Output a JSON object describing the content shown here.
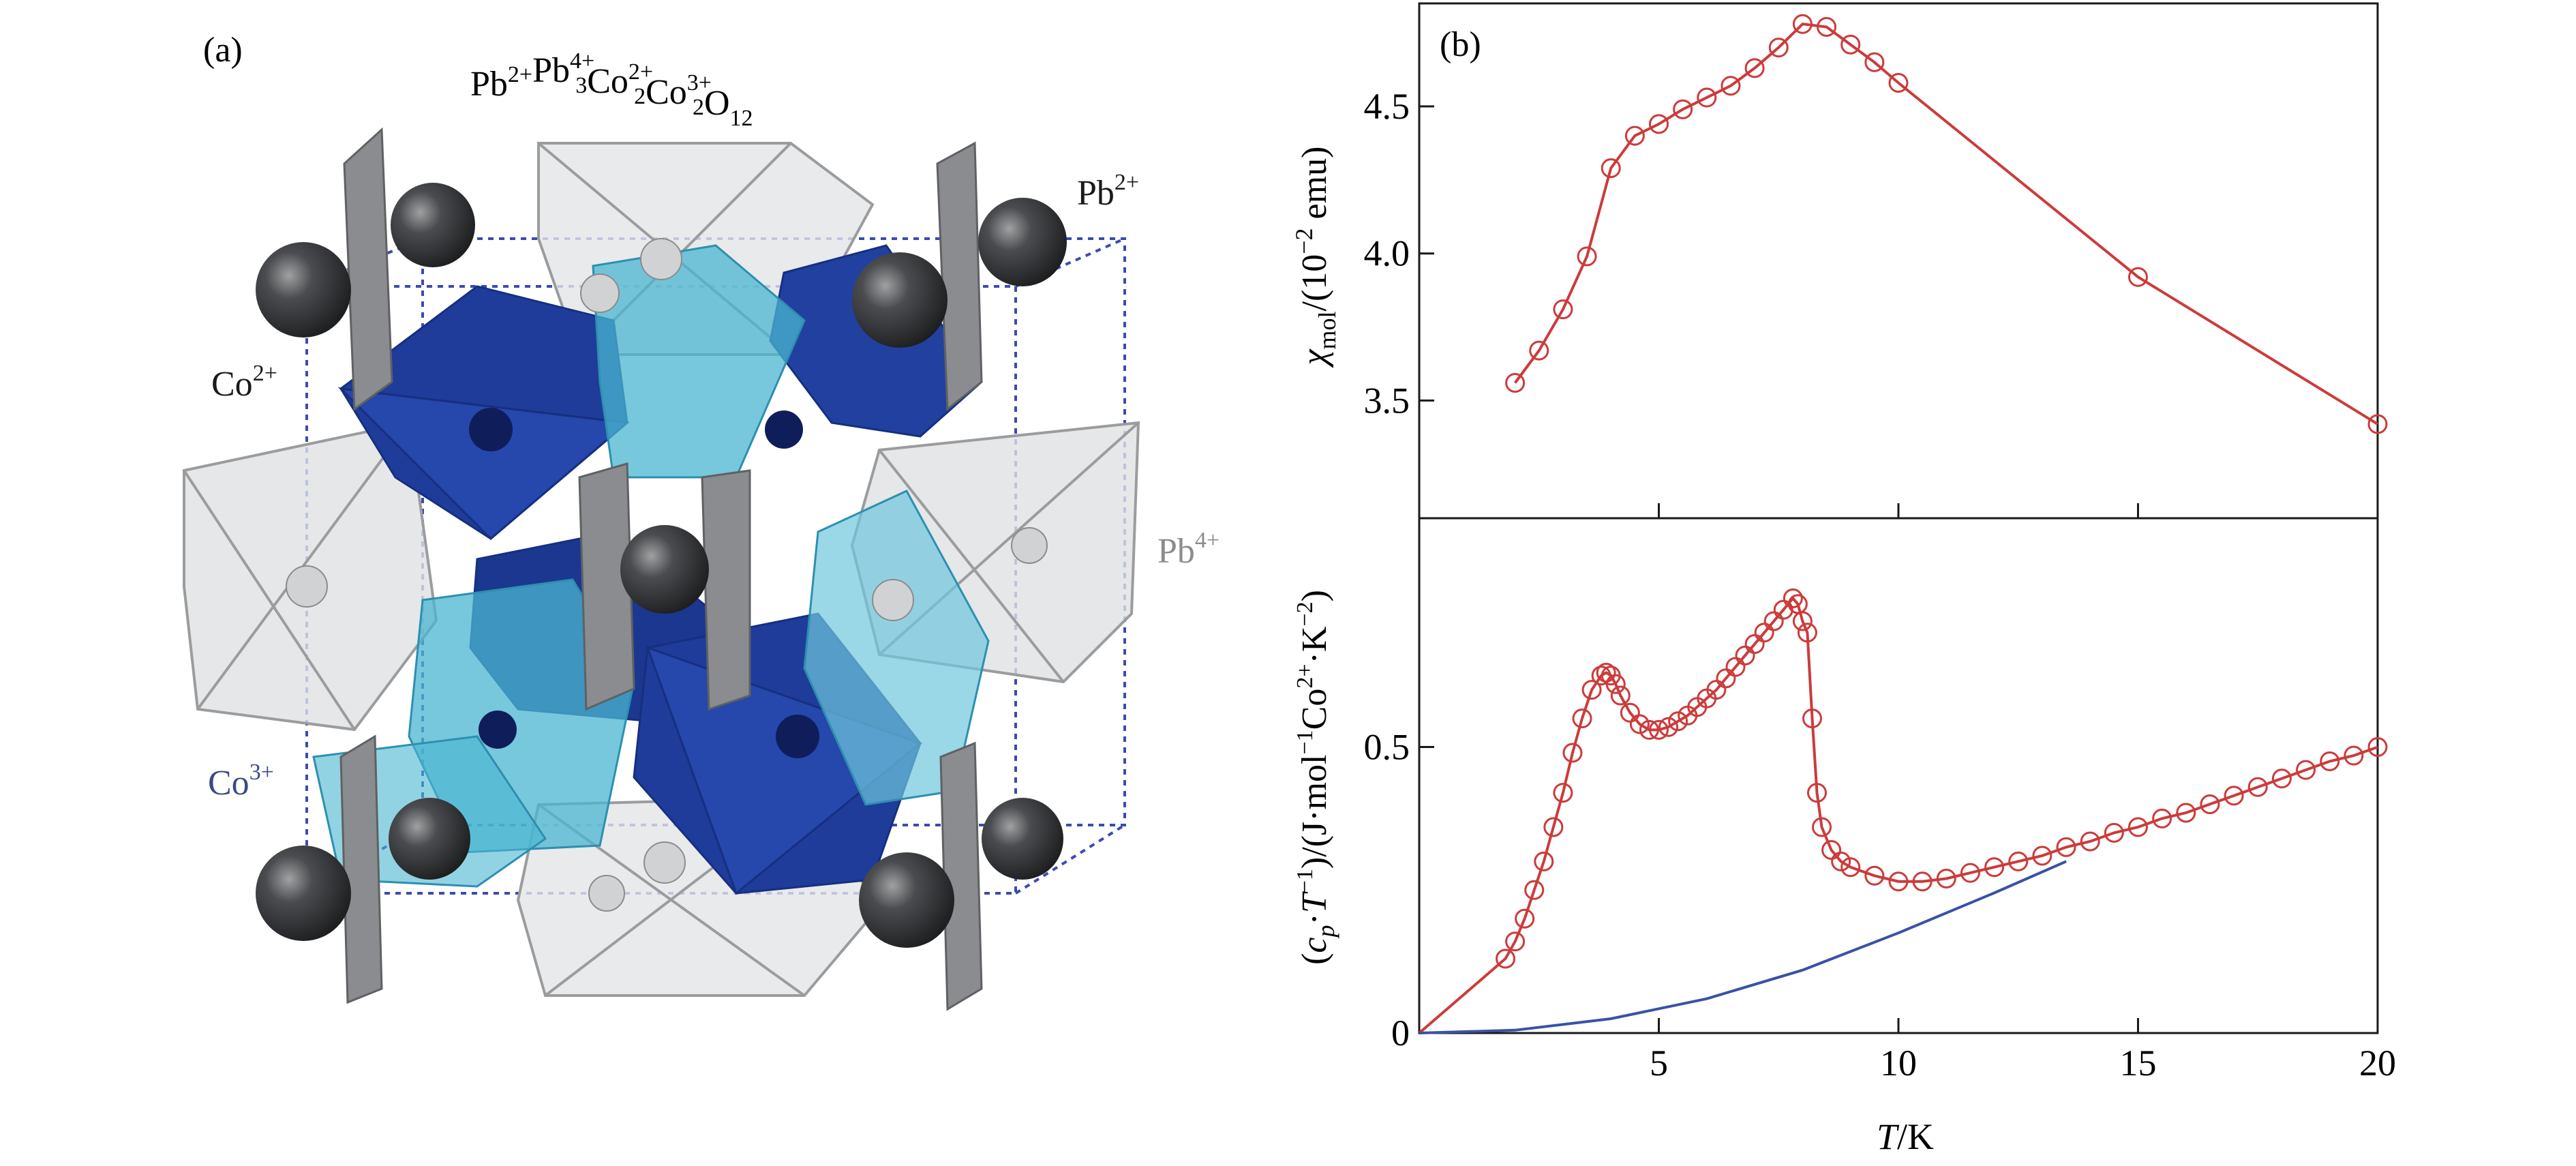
{
  "panel_a": {
    "label": "(a)",
    "formula": {
      "parts": [
        {
          "base": "Pb",
          "sup": "2+",
          "sub": ""
        },
        {
          "base": "Pb",
          "sup": "4+",
          "sub": "3"
        },
        {
          "base": "Co",
          "sup": "2+",
          "sub": "2"
        },
        {
          "base": "Co",
          "sup": "3+",
          "sub": "2"
        },
        {
          "base": "O",
          "sup": "",
          "sub": "12"
        }
      ]
    },
    "labels": {
      "pb2": {
        "base": "Pb",
        "sup": "2+"
      },
      "co2": {
        "base": "Co",
        "sup": "2+"
      },
      "pb4": {
        "base": "Pb",
        "sup": "4+"
      },
      "co3": {
        "base": "Co",
        "sup": "3+"
      }
    },
    "colors": {
      "co2_octahedra": "#1f3c9a",
      "co3_octahedra": "#49b5d0",
      "pb4_octahedra": "#d6d8da",
      "pb2_sphere": "#2e2f31",
      "pb4_label": "#8c8c8c",
      "co3_label": "#3a4a88"
    }
  },
  "panel_b": {
    "label": "(b)",
    "xlabel": {
      "italic": "T",
      "rest": "/K"
    },
    "ylabel_top": {
      "chi": "χ",
      "sub": "mol",
      "rest": "/(10",
      "sup": "−2",
      "tail": " emu)"
    },
    "ylabel_bottom": "(c_p·T^-1)/(J·mol^-1Co^2+·K^-2)",
    "colors": {
      "data": "#cc3b3b",
      "lattice": "#3a52a6",
      "frame": "#1a1a1a"
    }
  },
  "chart_data": [
    {
      "type": "line",
      "panel": "(b) top",
      "title": "",
      "xlabel": "T/K",
      "ylabel": "χmol/(10^-2 emu)",
      "xlim": [
        0,
        20
      ],
      "ylim": [
        3.1,
        4.85
      ],
      "xticks": [
        5,
        10,
        15,
        20
      ],
      "yticks": [
        3.5,
        4.0,
        4.5
      ],
      "ytick_labels": [
        "3.5",
        "4.0",
        "4.5"
      ],
      "series": [
        {
          "markers": "open-circle",
          "x": [
            2.0,
            2.5,
            3.0,
            3.5,
            4.0,
            4.5,
            5.0,
            5.5,
            6.0,
            6.5,
            7.0,
            7.5,
            8.0,
            8.5,
            9.0,
            9.5,
            10.0,
            15.0,
            20.0
          ],
          "y": [
            3.56,
            3.67,
            3.81,
            3.99,
            4.29,
            4.4,
            4.44,
            4.49,
            4.53,
            4.57,
            4.63,
            4.7,
            4.78,
            4.77,
            4.71,
            4.65,
            4.58,
            3.92,
            3.42
          ]
        }
      ]
    },
    {
      "type": "line",
      "panel": "(b) bottom",
      "title": "",
      "xlabel": "T/K",
      "ylabel": "(cp·T^-1)/(J·mol^-1Co^2+·K^-2)",
      "xlim": [
        0,
        20
      ],
      "ylim": [
        0,
        0.9
      ],
      "xticks": [
        5,
        10,
        15,
        20
      ],
      "xtick_labels": [
        "5",
        "10",
        "15",
        "20"
      ],
      "yticks": [
        0,
        0.5
      ],
      "ytick_labels": [
        "0",
        "0.5"
      ],
      "series": [
        {
          "markers": "open-circle",
          "x": [
            0.0,
            1.8,
            2.0,
            2.2,
            2.4,
            2.6,
            2.8,
            3.0,
            3.2,
            3.4,
            3.6,
            3.8,
            3.9,
            4.0,
            4.1,
            4.2,
            4.4,
            4.6,
            4.8,
            5.0,
            5.2,
            5.4,
            5.6,
            5.8,
            6.0,
            6.2,
            6.4,
            6.6,
            6.8,
            7.0,
            7.2,
            7.4,
            7.6,
            7.8,
            7.9,
            8.0,
            8.1,
            8.2,
            8.3,
            8.4,
            8.6,
            8.8,
            9.0,
            9.5,
            10.0,
            10.5,
            11.0,
            11.5,
            12.0,
            12.5,
            13.0,
            13.5,
            14.0,
            14.5,
            15.0,
            15.5,
            16.0,
            16.5,
            17.0,
            17.5,
            18.0,
            18.5,
            19.0,
            19.5,
            20.0
          ],
          "y": [
            0.0,
            0.13,
            0.16,
            0.2,
            0.25,
            0.3,
            0.36,
            0.42,
            0.49,
            0.55,
            0.6,
            0.625,
            0.63,
            0.625,
            0.61,
            0.59,
            0.56,
            0.54,
            0.53,
            0.53,
            0.535,
            0.545,
            0.555,
            0.57,
            0.585,
            0.6,
            0.62,
            0.64,
            0.66,
            0.68,
            0.7,
            0.72,
            0.74,
            0.76,
            0.75,
            0.72,
            0.7,
            0.55,
            0.42,
            0.36,
            0.32,
            0.3,
            0.29,
            0.275,
            0.265,
            0.265,
            0.27,
            0.28,
            0.29,
            0.3,
            0.31,
            0.325,
            0.335,
            0.35,
            0.36,
            0.375,
            0.385,
            0.4,
            0.415,
            0.43,
            0.445,
            0.46,
            0.475,
            0.485,
            0.5
          ]
        },
        {
          "markers": "none",
          "x": [
            0,
            2,
            4,
            6,
            8,
            10,
            12,
            13.5
          ],
          "y": [
            0,
            0.005,
            0.025,
            0.06,
            0.11,
            0.175,
            0.245,
            0.3
          ]
        }
      ]
    }
  ]
}
